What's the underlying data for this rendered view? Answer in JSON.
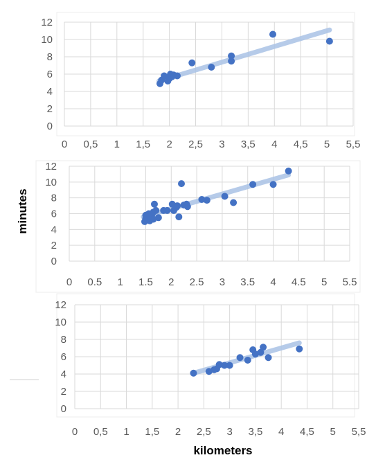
{
  "x_axis_title": "kilometers",
  "y_axis_title": "minutes",
  "colors": {
    "point": "#4472c4",
    "trend": "#aac3e6",
    "grid": "#d9d9d9",
    "tick": "#595959"
  },
  "chart_data": [
    {
      "type": "scatter",
      "title": "",
      "xlim": [
        0,
        5.5
      ],
      "ylim": [
        0,
        12
      ],
      "x_ticks": [
        "0",
        "0,5",
        "1",
        "1,5",
        "2",
        "2,5",
        "3",
        "3,5",
        "4",
        "4,5",
        "5",
        "5,5"
      ],
      "y_ticks": [
        "0",
        "2",
        "4",
        "6",
        "8",
        "10",
        "12"
      ],
      "grid": true,
      "trendline": {
        "x": [
          1.8,
          5.05
        ],
        "y": [
          5.2,
          11.1
        ]
      },
      "points": [
        [
          1.82,
          4.9
        ],
        [
          1.85,
          5.3
        ],
        [
          1.9,
          5.8
        ],
        [
          1.97,
          5.2
        ],
        [
          2.0,
          5.5
        ],
        [
          2.02,
          6.0
        ],
        [
          2.05,
          5.7
        ],
        [
          2.08,
          5.9
        ],
        [
          2.15,
          5.8
        ],
        [
          2.43,
          7.3
        ],
        [
          2.8,
          6.8
        ],
        [
          3.18,
          7.5
        ],
        [
          3.18,
          8.1
        ],
        [
          3.97,
          10.6
        ],
        [
          5.05,
          9.8
        ]
      ]
    },
    {
      "type": "scatter",
      "title": "",
      "xlim": [
        0,
        5.5
      ],
      "ylim": [
        0,
        12
      ],
      "x_ticks": [
        "0",
        "0.5",
        "1",
        "1.5",
        "2",
        "2.5",
        "3",
        "3.5",
        "4",
        "4.5",
        "5",
        "5.5"
      ],
      "y_ticks": [
        "0",
        "2",
        "4",
        "6",
        "8",
        "10",
        "12"
      ],
      "grid": true,
      "trendline": {
        "x": [
          1.45,
          4.3
        ],
        "y": [
          5.6,
          10.9
        ]
      },
      "points": [
        [
          1.48,
          5.0
        ],
        [
          1.5,
          5.4
        ],
        [
          1.5,
          5.8
        ],
        [
          1.52,
          5.2
        ],
        [
          1.55,
          5.6
        ],
        [
          1.56,
          6.0
        ],
        [
          1.58,
          5.1
        ],
        [
          1.6,
          5.5
        ],
        [
          1.62,
          5.9
        ],
        [
          1.65,
          6.2
        ],
        [
          1.65,
          5.3
        ],
        [
          1.67,
          7.2
        ],
        [
          1.7,
          6.4
        ],
        [
          1.75,
          5.5
        ],
        [
          1.85,
          6.4
        ],
        [
          1.92,
          6.4
        ],
        [
          2.02,
          7.2
        ],
        [
          2.05,
          6.4
        ],
        [
          2.1,
          6.8
        ],
        [
          2.12,
          7.0
        ],
        [
          2.15,
          5.6
        ],
        [
          2.2,
          9.8
        ],
        [
          2.25,
          7.1
        ],
        [
          2.3,
          7.2
        ],
        [
          2.32,
          6.9
        ],
        [
          2.6,
          7.8
        ],
        [
          2.7,
          7.7
        ],
        [
          3.05,
          8.2
        ],
        [
          3.22,
          7.4
        ],
        [
          3.6,
          9.7
        ],
        [
          4.0,
          9.7
        ],
        [
          4.3,
          11.4
        ]
      ]
    },
    {
      "type": "scatter",
      "title": "",
      "xlim": [
        0,
        5.5
      ],
      "ylim": [
        0,
        12
      ],
      "x_ticks": [
        "0",
        "0,5",
        "1",
        "1,5",
        "2",
        "2,5",
        "3",
        "3,5",
        "4",
        "4,5",
        "5",
        "5,5"
      ],
      "y_ticks": [
        "0",
        "2",
        "4",
        "6",
        "8",
        "10",
        "12"
      ],
      "grid": true,
      "trendline": {
        "x": [
          2.3,
          4.35
        ],
        "y": [
          4.1,
          7.6
        ]
      },
      "points": [
        [
          2.3,
          4.1
        ],
        [
          2.6,
          4.3
        ],
        [
          2.7,
          4.5
        ],
        [
          2.75,
          4.6
        ],
        [
          2.8,
          5.1
        ],
        [
          2.9,
          5.0
        ],
        [
          3.0,
          5.0
        ],
        [
          3.2,
          5.9
        ],
        [
          3.35,
          5.6
        ],
        [
          3.45,
          6.8
        ],
        [
          3.5,
          6.3
        ],
        [
          3.6,
          6.5
        ],
        [
          3.65,
          7.1
        ],
        [
          3.75,
          5.9
        ],
        [
          4.35,
          6.9
        ]
      ]
    }
  ]
}
